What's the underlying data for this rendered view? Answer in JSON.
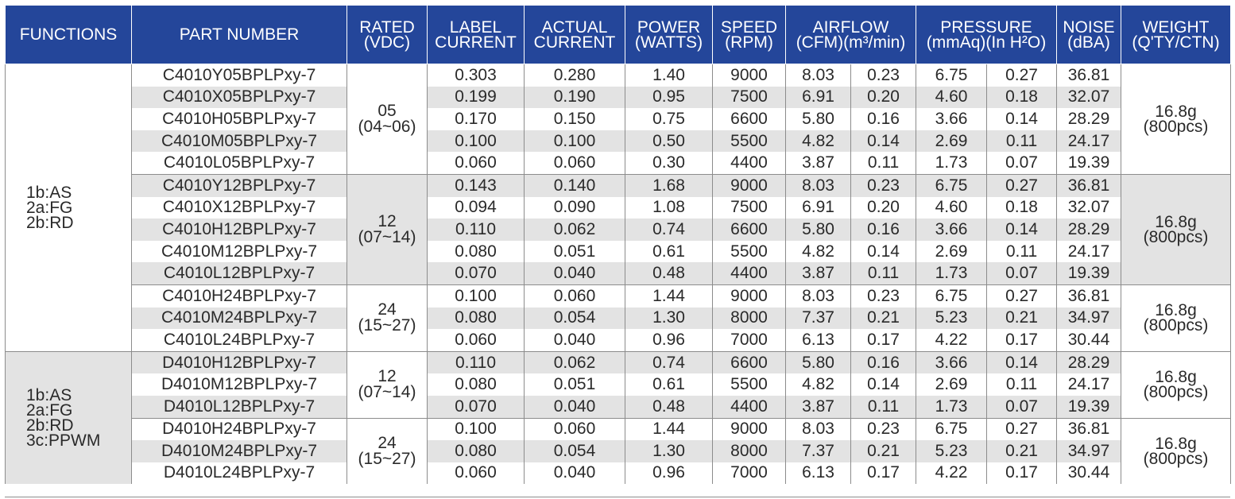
{
  "headers": [
    [
      "FUNCTIONS"
    ],
    [
      "PART NUMBER"
    ],
    [
      "RATED",
      "(VDC)"
    ],
    [
      "LABEL",
      "CURRENT"
    ],
    [
      "ACTUAL",
      "CURRENT"
    ],
    [
      "POWER",
      "(WATTS)"
    ],
    [
      "SPEED",
      "(RPM)"
    ],
    [
      "AIRFLOW",
      "(CFM)(m³/min)"
    ],
    [
      "PRESSURE",
      "(mmAq)(In H²O)"
    ],
    [
      "NOISE",
      "(dBA)"
    ],
    [
      "WEIGHT",
      "(Q'TY/CTN)"
    ]
  ],
  "functions": [
    [
      "1b:AS",
      "2a:FG",
      "2b:RD"
    ],
    [
      "1b:AS",
      "2a:FG",
      "2b:RD",
      "3c:PPWM"
    ]
  ],
  "voltages": [
    [
      "05",
      "(04~06)"
    ],
    [
      "12",
      "(07~14)"
    ],
    [
      "24",
      "(15~27)"
    ],
    [
      "12",
      "(07~14)"
    ],
    [
      "24",
      "(15~27)"
    ]
  ],
  "weights": [
    [
      "16.8g",
      "(800pcs)"
    ],
    [
      "16.8g",
      "(800pcs)"
    ],
    [
      "16.8g",
      "(800pcs)"
    ],
    [
      "16.8g",
      "(800pcs)"
    ],
    [
      "16.8g",
      "(800pcs)"
    ]
  ],
  "rows": [
    [
      "C4010Y05BPLPxy-7",
      "0.303",
      "0.280",
      "1.40",
      "9000",
      "8.03",
      "0.23",
      "6.75",
      "0.27",
      "36.81"
    ],
    [
      "C4010X05BPLPxy-7",
      "0.199",
      "0.190",
      "0.95",
      "7500",
      "6.91",
      "0.20",
      "4.60",
      "0.18",
      "32.07"
    ],
    [
      "C4010H05BPLPxy-7",
      "0.170",
      "0.150",
      "0.75",
      "6600",
      "5.80",
      "0.16",
      "3.66",
      "0.14",
      "28.29"
    ],
    [
      "C4010M05BPLPxy-7",
      "0.100",
      "0.100",
      "0.50",
      "5500",
      "4.82",
      "0.14",
      "2.69",
      "0.11",
      "24.17"
    ],
    [
      "C4010L05BPLPxy-7",
      "0.060",
      "0.060",
      "0.30",
      "4400",
      "3.87",
      "0.11",
      "1.73",
      "0.07",
      "19.39"
    ],
    [
      "C4010Y12BPLPxy-7",
      "0.143",
      "0.140",
      "1.68",
      "9000",
      "8.03",
      "0.23",
      "6.75",
      "0.27",
      "36.81"
    ],
    [
      "C4010X12BPLPxy-7",
      "0.094",
      "0.090",
      "1.08",
      "7500",
      "6.91",
      "0.20",
      "4.60",
      "0.18",
      "32.07"
    ],
    [
      "C4010H12BPLPxy-7",
      "0.110",
      "0.062",
      "0.74",
      "6600",
      "5.80",
      "0.16",
      "3.66",
      "0.14",
      "28.29"
    ],
    [
      "C4010M12BPLPxy-7",
      "0.080",
      "0.051",
      "0.61",
      "5500",
      "4.82",
      "0.14",
      "2.69",
      "0.11",
      "24.17"
    ],
    [
      "C4010L12BPLPxy-7",
      "0.070",
      "0.040",
      "0.48",
      "4400",
      "3.87",
      "0.11",
      "1.73",
      "0.07",
      "19.39"
    ],
    [
      "C4010H24BPLPxy-7",
      "0.100",
      "0.060",
      "1.44",
      "9000",
      "8.03",
      "0.23",
      "6.75",
      "0.27",
      "36.81"
    ],
    [
      "C4010M24BPLPxy-7",
      "0.080",
      "0.054",
      "1.30",
      "8000",
      "7.37",
      "0.21",
      "5.23",
      "0.21",
      "34.97"
    ],
    [
      "C4010L24BPLPxy-7",
      "0.060",
      "0.040",
      "0.96",
      "7000",
      "6.13",
      "0.17",
      "4.22",
      "0.17",
      "30.44"
    ],
    [
      "D4010H12BPLPxy-7",
      "0.110",
      "0.062",
      "0.74",
      "6600",
      "5.80",
      "0.16",
      "3.66",
      "0.14",
      "28.29"
    ],
    [
      "D4010M12BPLPxy-7",
      "0.080",
      "0.051",
      "0.61",
      "5500",
      "4.82",
      "0.14",
      "2.69",
      "0.11",
      "24.17"
    ],
    [
      "D4010L12BPLPxy-7",
      "0.070",
      "0.040",
      "0.48",
      "4400",
      "3.87",
      "0.11",
      "1.73",
      "0.07",
      "19.39"
    ],
    [
      "D4010H24BPLPxy-7",
      "0.100",
      "0.060",
      "1.44",
      "9000",
      "8.03",
      "0.23",
      "6.75",
      "0.27",
      "36.81"
    ],
    [
      "D4010M24BPLPxy-7",
      "0.080",
      "0.054",
      "1.30",
      "8000",
      "7.37",
      "0.21",
      "5.23",
      "0.21",
      "34.97"
    ],
    [
      "D4010L24BPLPxy-7",
      "0.060",
      "0.040",
      "0.96",
      "7000",
      "6.13",
      "0.17",
      "4.22",
      "0.17",
      "30.44"
    ]
  ],
  "colors": {
    "header_bg": "#24469a",
    "header_text": "#ffffff",
    "row_shade": "#e3e3e3",
    "border": "#8c8c8c"
  }
}
